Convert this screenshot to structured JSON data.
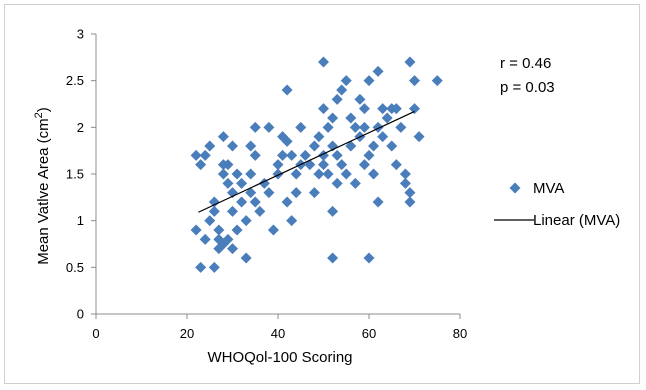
{
  "chart_data": {
    "type": "scatter",
    "title": "",
    "xlabel": "WHOQol-100 Scoring",
    "ylabel": "Mean Vatlve Area (cm",
    "ylabel_sup": "2",
    "ylabel_close": ")",
    "xlim": [
      0,
      80
    ],
    "ylim": [
      0,
      3
    ],
    "x_ticks": [
      "0",
      "20",
      "40",
      "60",
      "80"
    ],
    "y_ticks": [
      "0",
      "0.5",
      "1",
      "1.5",
      "2",
      "2.5",
      "3"
    ],
    "grid": false,
    "legend_position": "right",
    "marker_color": "#4a7ebb",
    "trendline_color": "#000000",
    "annotations": [
      "r = 0.46",
      "p = 0.03"
    ],
    "series": [
      {
        "name": "MVA",
        "points": [
          [
            22,
            1.7
          ],
          [
            22,
            0.9
          ],
          [
            23,
            0.5
          ],
          [
            23,
            1.6
          ],
          [
            24,
            1.7
          ],
          [
            24,
            0.8
          ],
          [
            25,
            1.8
          ],
          [
            25,
            1.0
          ],
          [
            26,
            0.5
          ],
          [
            26,
            1.1
          ],
          [
            26,
            1.2
          ],
          [
            27,
            0.7
          ],
          [
            27,
            0.8
          ],
          [
            27,
            0.9
          ],
          [
            28,
            1.9
          ],
          [
            28,
            1.5
          ],
          [
            28,
            1.6
          ],
          [
            28,
            0.75
          ],
          [
            29,
            1.6
          ],
          [
            29,
            1.4
          ],
          [
            29,
            0.8
          ],
          [
            30,
            1.8
          ],
          [
            30,
            1.3
          ],
          [
            30,
            1.1
          ],
          [
            30,
            0.7
          ],
          [
            31,
            1.5
          ],
          [
            31,
            0.9
          ],
          [
            32,
            1.4
          ],
          [
            32,
            1.2
          ],
          [
            33,
            1.0
          ],
          [
            33,
            0.6
          ],
          [
            34,
            1.8
          ],
          [
            34,
            1.5
          ],
          [
            34,
            1.3
          ],
          [
            35,
            2.0
          ],
          [
            35,
            1.7
          ],
          [
            35,
            1.2
          ],
          [
            36,
            1.1
          ],
          [
            37,
            1.4
          ],
          [
            38,
            1.3
          ],
          [
            38,
            2.0
          ],
          [
            39,
            0.9
          ],
          [
            40,
            1.6
          ],
          [
            40,
            1.5
          ],
          [
            41,
            1.9
          ],
          [
            41,
            1.7
          ],
          [
            42,
            2.4
          ],
          [
            42,
            1.85
          ],
          [
            42,
            1.2
          ],
          [
            43,
            1.7
          ],
          [
            43,
            1.0
          ],
          [
            44,
            1.5
          ],
          [
            44,
            1.3
          ],
          [
            45,
            2.0
          ],
          [
            45,
            1.6
          ],
          [
            46,
            1.7
          ],
          [
            47,
            1.6
          ],
          [
            48,
            1.8
          ],
          [
            48,
            1.3
          ],
          [
            49,
            1.5
          ],
          [
            49,
            1.9
          ],
          [
            50,
            2.7
          ],
          [
            50,
            2.2
          ],
          [
            50,
            1.7
          ],
          [
            50,
            1.6
          ],
          [
            51,
            2.0
          ],
          [
            51,
            1.5
          ],
          [
            52,
            2.1
          ],
          [
            52,
            1.8
          ],
          [
            52,
            1.1
          ],
          [
            52,
            0.6
          ],
          [
            53,
            2.3
          ],
          [
            53,
            1.7
          ],
          [
            53,
            1.4
          ],
          [
            54,
            2.4
          ],
          [
            54,
            1.6
          ],
          [
            55,
            2.5
          ],
          [
            55,
            1.5
          ],
          [
            56,
            2.1
          ],
          [
            56,
            1.8
          ],
          [
            57,
            2.0
          ],
          [
            57,
            1.4
          ],
          [
            58,
            1.9
          ],
          [
            58,
            2.3
          ],
          [
            59,
            2.2
          ],
          [
            59,
            2.0
          ],
          [
            59,
            1.6
          ],
          [
            60,
            2.5
          ],
          [
            60,
            1.7
          ],
          [
            60,
            0.6
          ],
          [
            61,
            1.8
          ],
          [
            61,
            1.5
          ],
          [
            62,
            2.6
          ],
          [
            62,
            2.0
          ],
          [
            62,
            1.2
          ],
          [
            63,
            2.2
          ],
          [
            63,
            1.9
          ],
          [
            64,
            2.1
          ],
          [
            65,
            2.2
          ],
          [
            65,
            1.8
          ],
          [
            66,
            2.2
          ],
          [
            66,
            1.6
          ],
          [
            67,
            2.0
          ],
          [
            68,
            1.5
          ],
          [
            68,
            1.4
          ],
          [
            69,
            2.7
          ],
          [
            69,
            1.3
          ],
          [
            69,
            1.2
          ],
          [
            70,
            2.5
          ],
          [
            70,
            2.2
          ],
          [
            71,
            1.9
          ],
          [
            75,
            2.5
          ]
        ]
      },
      {
        "name": "Linear (MVA)",
        "points": [
          [
            22.5,
            1.09
          ],
          [
            70,
            2.17
          ]
        ]
      }
    ]
  }
}
